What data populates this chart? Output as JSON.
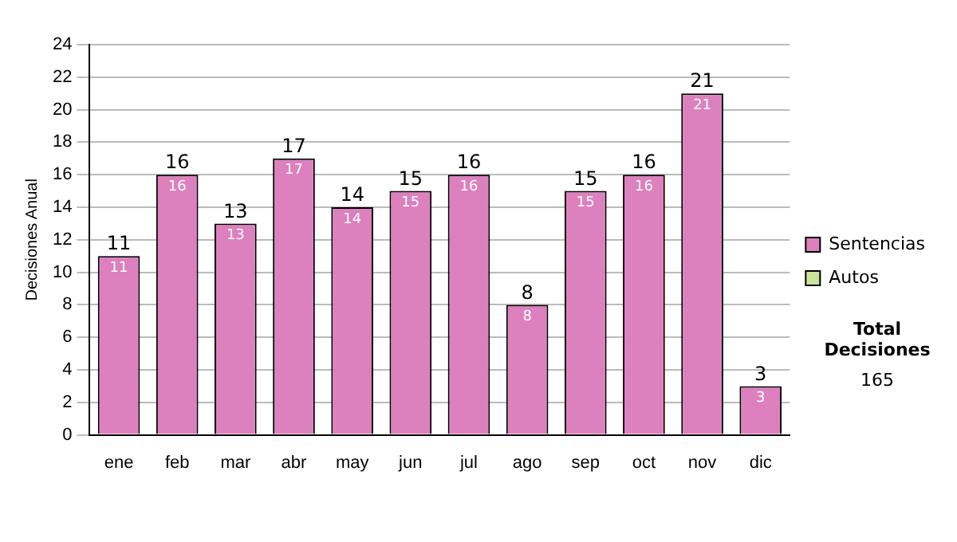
{
  "chart_data": {
    "type": "bar",
    "ylabel": "Decisiones Anual",
    "categories": [
      "ene",
      "feb",
      "mar",
      "abr",
      "may",
      "jun",
      "jul",
      "ago",
      "sep",
      "oct",
      "nov",
      "dic"
    ],
    "series": [
      {
        "name": "Sentencias",
        "color": "#dd80be",
        "values": [
          11,
          16,
          13,
          17,
          14,
          15,
          16,
          8,
          15,
          16,
          21,
          3
        ],
        "value_labels": [
          "11",
          "16",
          "13",
          "17",
          "14",
          "15",
          "16",
          "8",
          "15",
          "16",
          "21",
          "3"
        ]
      },
      {
        "name": "Autos",
        "color": "#cce39a",
        "values": [
          0,
          0,
          0,
          0,
          0,
          0,
          0,
          0,
          0,
          0,
          0,
          0
        ],
        "value_labels": [
          null,
          null,
          null,
          null,
          null,
          null,
          null,
          null,
          null,
          null,
          null,
          null
        ]
      }
    ],
    "stacked": true,
    "ylim": [
      0,
      24
    ],
    "yticks": [
      0,
      2,
      4,
      6,
      8,
      10,
      12,
      14,
      16,
      18,
      20,
      22,
      24
    ],
    "grid": "y",
    "legend": "right",
    "totals": [
      "11",
      "16",
      "13",
      "17",
      "14",
      "15",
      "16",
      "8",
      "15",
      "16",
      "21",
      "3"
    ],
    "annotations": [
      "Total Decisiones",
      "165"
    ]
  }
}
